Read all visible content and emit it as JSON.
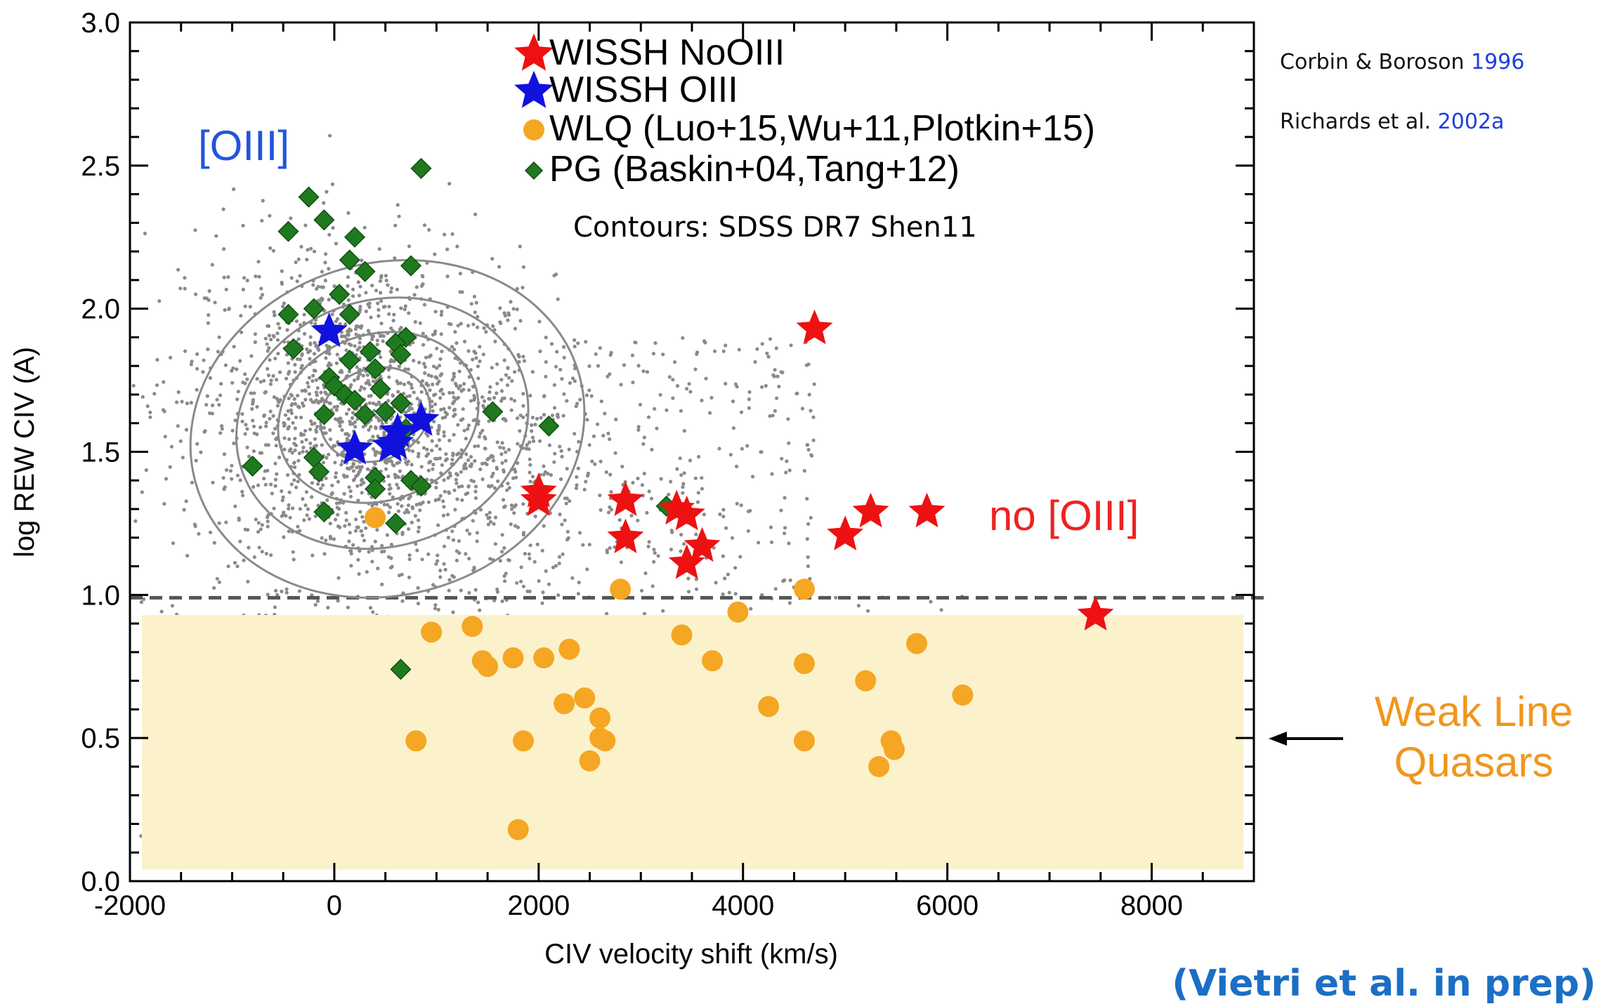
{
  "chart_data": {
    "type": "scatter",
    "xlabel": "CIV velocity shift (km/s)",
    "ylabel": "log REW CIV (A)",
    "xlim": [
      -2000,
      9000
    ],
    "ylim": [
      0.0,
      3.0
    ],
    "xticks": [
      -2000,
      0,
      2000,
      4000,
      6000,
      8000
    ],
    "yticks": [
      0.0,
      0.5,
      1.0,
      1.5,
      2.0,
      2.5,
      3.0
    ],
    "xtick_labels": [
      "-2000",
      "0",
      "2000",
      "4000",
      "6000",
      "8000"
    ],
    "ytick_labels": [
      "0.0",
      "0.5",
      "1.0",
      "1.5",
      "2.0",
      "2.5",
      "3.0"
    ],
    "legend_position": "top-center",
    "series": [
      {
        "name": "WISSH NoOIII",
        "marker": "star",
        "color": "#ee1111",
        "x": [
          4700,
          2000,
          2000,
          2850,
          2850,
          3350,
          3450,
          3600,
          3450,
          5000,
          5250,
          5800,
          7450
        ],
        "y": [
          1.93,
          1.36,
          1.33,
          1.33,
          1.2,
          1.3,
          1.28,
          1.17,
          1.11,
          1.21,
          1.29,
          1.29,
          0.93
        ]
      },
      {
        "name": "WISSH OIII",
        "marker": "star",
        "color": "#1111dd",
        "x": [
          -50,
          850,
          620,
          550,
          600,
          200
        ],
        "y": [
          1.92,
          1.61,
          1.57,
          1.52,
          1.53,
          1.51
        ]
      },
      {
        "name": "WLQ (Luo+15,Wu+11,Plotkin+15)",
        "marker": "circle",
        "color": "#f5a623",
        "x": [
          400,
          2800,
          4600,
          3950,
          950,
          1350,
          1450,
          1750,
          2050,
          2300,
          3400,
          3700,
          4600,
          5700,
          1500,
          5200,
          6150,
          2250,
          2450,
          4250,
          2600,
          800,
          1850,
          2600,
          2650,
          4600,
          5450,
          5480,
          2500,
          5330,
          1800
        ],
        "y": [
          1.27,
          1.02,
          1.02,
          0.94,
          0.87,
          0.89,
          0.77,
          0.78,
          0.78,
          0.81,
          0.86,
          0.77,
          0.76,
          0.83,
          0.75,
          0.7,
          0.65,
          0.62,
          0.64,
          0.61,
          0.57,
          0.49,
          0.49,
          0.5,
          0.49,
          0.49,
          0.49,
          0.46,
          0.42,
          0.4,
          0.18
        ]
      },
      {
        "name": "PG (Baskin+04,Tang+12)",
        "marker": "diamond",
        "color": "#1f7a1f",
        "x": [
          850,
          -250,
          -100,
          -450,
          200,
          150,
          750,
          300,
          50,
          -450,
          -200,
          150,
          -400,
          700,
          600,
          350,
          650,
          150,
          400,
          -50,
          0,
          100,
          200,
          450,
          650,
          -100,
          300,
          500,
          700,
          1550,
          2100,
          600,
          -800,
          -200,
          400,
          -150,
          750,
          850,
          3250,
          400,
          -100,
          600,
          650
        ],
        "y": [
          2.49,
          2.39,
          2.31,
          2.27,
          2.25,
          2.17,
          2.15,
          2.13,
          2.05,
          1.98,
          2.0,
          1.98,
          1.86,
          1.9,
          1.88,
          1.85,
          1.84,
          1.82,
          1.79,
          1.76,
          1.73,
          1.7,
          1.68,
          1.72,
          1.67,
          1.63,
          1.63,
          1.64,
          1.58,
          1.64,
          1.59,
          1.52,
          1.45,
          1.48,
          1.41,
          1.43,
          1.4,
          1.38,
          1.31,
          1.37,
          1.29,
          1.25,
          0.74
        ]
      }
    ],
    "shaded_region": {
      "y_range": [
        0.04,
        0.93
      ],
      "color": "#fbf2cc"
    },
    "threshold_line": {
      "y": 0.99,
      "style": "dashed"
    }
  },
  "legend": {
    "entries": [
      {
        "label": "WISSH NoOIII",
        "color": "#ee1111",
        "marker": "star"
      },
      {
        "label": "WISSH OIII",
        "color": "#1111dd",
        "marker": "star"
      },
      {
        "label": "WLQ (Luo+15,Wu+11,Plotkin+15)",
        "color": "#f5a623",
        "marker": "circle"
      },
      {
        "label": "PG (Baskin+04,Tang+12)",
        "color": "#1f7a1f",
        "marker": "diamond"
      }
    ],
    "contours_note": "Contours: SDSS DR7 Shen11"
  },
  "annotations": {
    "oiii": "[OIII]",
    "no_oiii": "no [OIII]",
    "weak_line_1": "Weak Line",
    "weak_line_2": "Quasars"
  },
  "references": [
    {
      "text": "Corbin & Boroson ",
      "year": "1996"
    },
    {
      "text": "Richards et al. ",
      "year": "2002a"
    }
  ],
  "credit": "(Vietri et al. in prep)",
  "colors": {
    "background_dots": "#8a8a8a",
    "contour": "#8a8a8a",
    "annotation_blue": "#2255dd",
    "annotation_red": "#ee2222",
    "annotation_orange": "#f0961e",
    "reference_year": "#1e3fd6"
  }
}
